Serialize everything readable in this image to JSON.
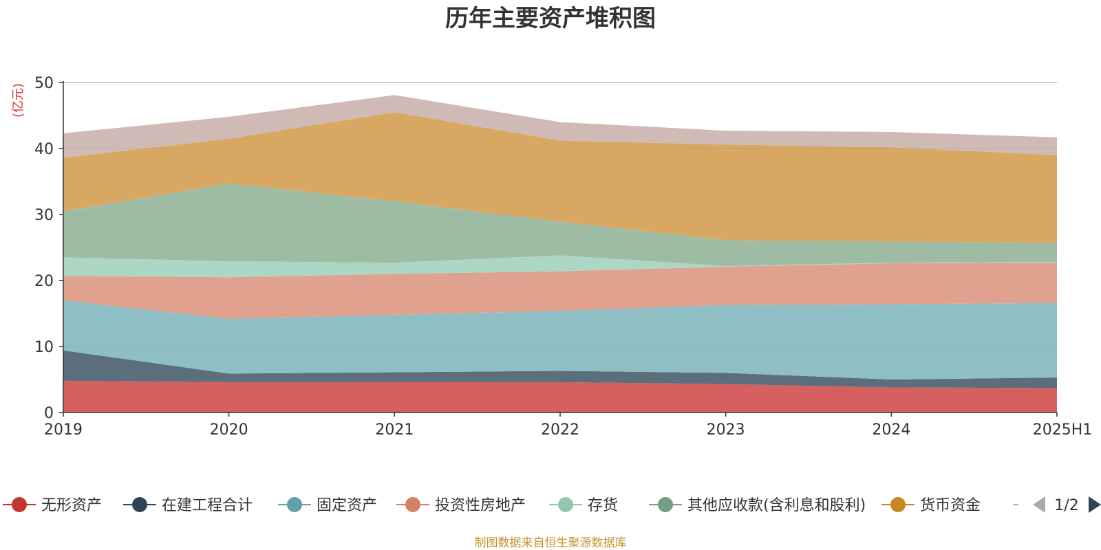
{
  "chart_data": {
    "type": "area",
    "stacked": true,
    "title": "历年主要资产堆积图",
    "y_unit_label": "(亿元)",
    "x": [
      "2019",
      "2020",
      "2021",
      "2022",
      "2023",
      "2024",
      "2025H1"
    ],
    "ylim": [
      0,
      50
    ],
    "yticks": [
      "0",
      "10",
      "20",
      "30",
      "40",
      "50"
    ],
    "grid": true,
    "series": [
      {
        "name": "无形资产",
        "color": "#d65f5f",
        "values": [
          4.8,
          4.6,
          4.6,
          4.6,
          4.3,
          3.8,
          3.7
        ]
      },
      {
        "name": "在建工程合计",
        "color": "#5a6e7c",
        "values": [
          4.6,
          1.3,
          1.5,
          1.7,
          1.7,
          1.2,
          1.6
        ]
      },
      {
        "name": "固定资产",
        "color": "#8fbfc4",
        "values": [
          7.6,
          8.3,
          8.7,
          9.1,
          10.3,
          11.4,
          11.3
        ]
      },
      {
        "name": "投资性房地产",
        "color": "#e0a28e",
        "values": [
          3.7,
          6.3,
          6.2,
          6.0,
          5.8,
          6.2,
          6.1
        ]
      },
      {
        "name": "存货",
        "color": "#acd7c4",
        "values": [
          2.8,
          2.4,
          1.7,
          2.4,
          0.1,
          0.1,
          0.1
        ]
      },
      {
        "name": "其他应收款(含利息和股利)",
        "color": "#9ebba4",
        "values": [
          7.0,
          11.8,
          9.3,
          5.1,
          3.9,
          3.2,
          2.9
        ]
      },
      {
        "name": "货币资金",
        "color": "#d8a862",
        "values": [
          8.1,
          6.8,
          13.5,
          12.3,
          14.5,
          14.3,
          13.3
        ]
      },
      {
        "name": "",
        "color": "#d0bab5",
        "values": [
          3.7,
          3.3,
          2.6,
          2.8,
          2.1,
          2.3,
          2.7
        ]
      }
    ],
    "legend": {
      "position": "bottom",
      "items": [
        {
          "name": "无形资产",
          "color": "#c23531"
        },
        {
          "name": "在建工程合计",
          "color": "#2f4554"
        },
        {
          "name": "固定资产",
          "color": "#61a0a8"
        },
        {
          "name": "投资性房地产",
          "color": "#d48265"
        },
        {
          "name": "存货",
          "color": "#91c7ae"
        },
        {
          "name": "其他应收款(含利息和股利)",
          "color": "#749f83"
        },
        {
          "name": "货币资金",
          "color": "#ca8622"
        }
      ],
      "page_indicator": "1/2"
    },
    "source_note": "制图数据来自恒生聚源数据库"
  }
}
